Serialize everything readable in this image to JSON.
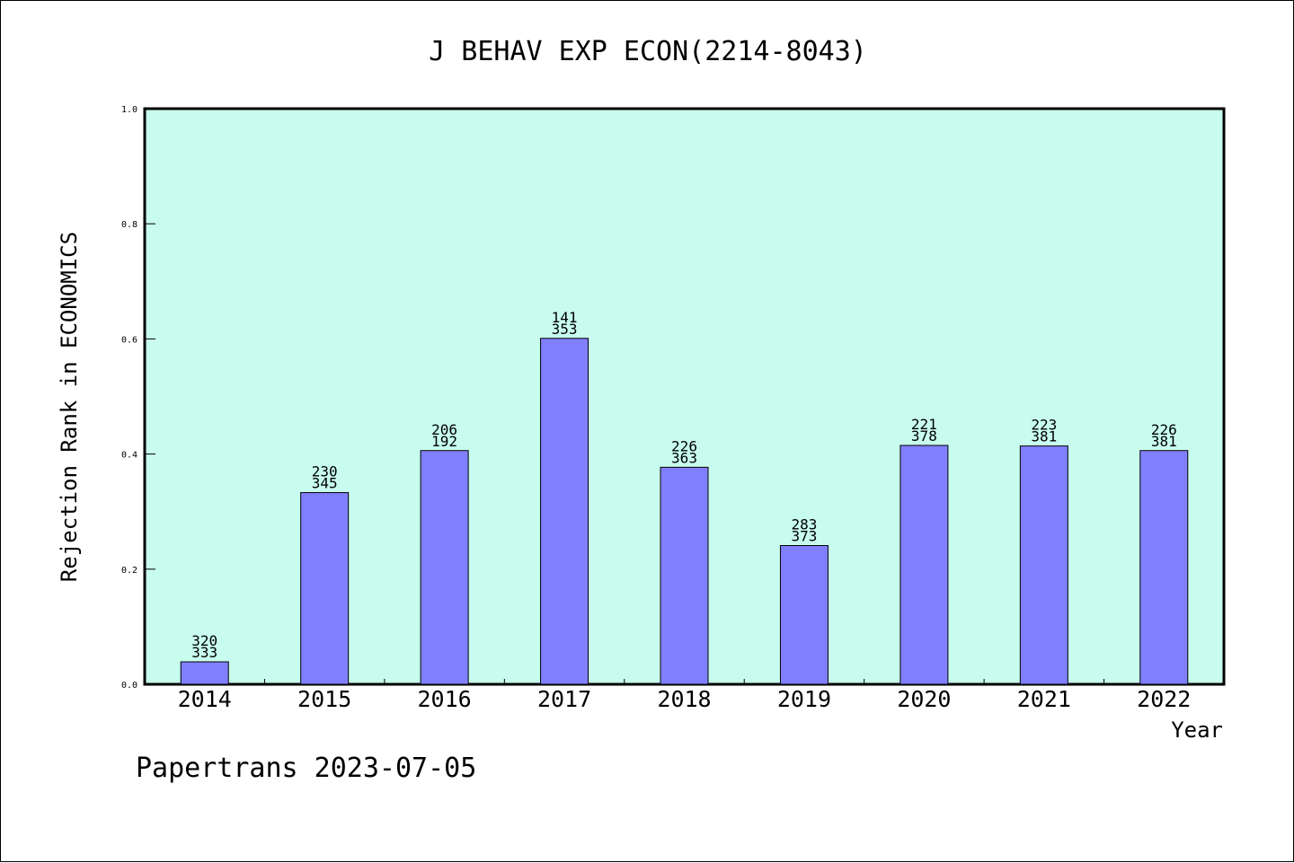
{
  "chart_data": {
    "type": "bar",
    "title": "J BEHAV EXP ECON(2214-8043)",
    "xlabel": "Year",
    "ylabel": "Rejection Rank in ECONOMICS",
    "ylim": [
      0,
      1.0
    ],
    "yticks": [
      "0.0",
      "0.2",
      "0.4",
      "0.6",
      "0.8",
      "1.0"
    ],
    "categories": [
      "2014",
      "2015",
      "2016",
      "2017",
      "2018",
      "2019",
      "2020",
      "2021",
      "2022"
    ],
    "values": [
      0.039,
      0.333,
      0.406,
      0.601,
      0.377,
      0.241,
      0.415,
      0.414,
      0.406
    ],
    "labels_top": [
      "320",
      "230",
      "206",
      "141",
      "226",
      "283",
      "221",
      "223",
      "226"
    ],
    "labels_bottom": [
      "333",
      "345",
      "192",
      "353",
      "363",
      "373",
      "378",
      "381",
      "381"
    ],
    "grid": false,
    "colors": {
      "plot_background": "#c8fcee",
      "bar_fill": "#8080ff",
      "bar_stroke": "#000000"
    }
  },
  "footer": {
    "credit": "Papertrans 2023-07-05"
  }
}
